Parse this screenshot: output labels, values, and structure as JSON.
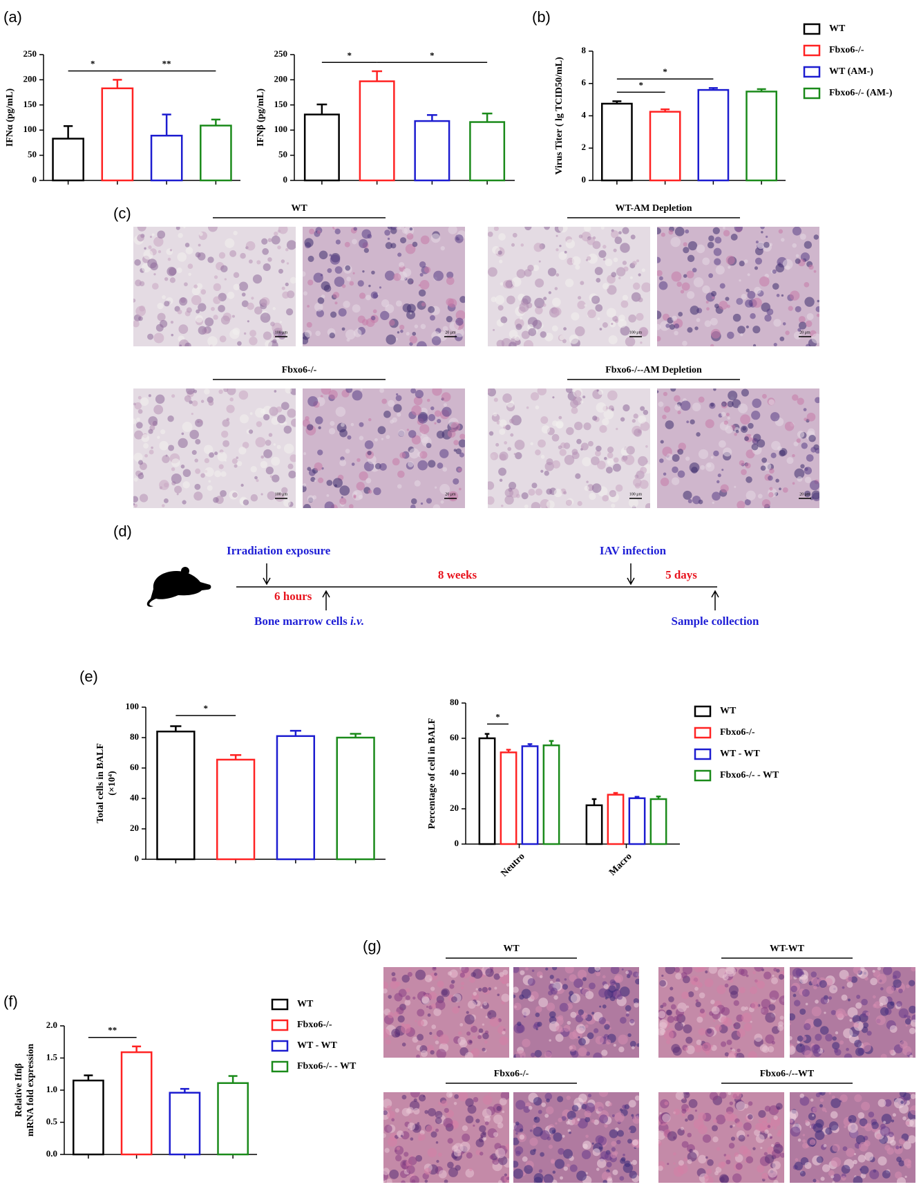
{
  "panel_labels": [
    "(a)",
    "(b)",
    "(c)",
    "(d)",
    "(e)",
    "(f)",
    "(g)"
  ],
  "legends": [
    {
      "items": [
        {
          "name": "WT",
          "color": "#000000"
        },
        {
          "name": "Fbxo6-/-",
          "color": "#ff2222"
        },
        {
          "name": "WT (AM-)",
          "color": "#1c1cd0"
        },
        {
          "name": "Fbxo6-/- (AM-)",
          "color": "#1a8a1a"
        }
      ]
    },
    {
      "items": [
        {
          "name": "WT",
          "color": "#000000"
        },
        {
          "name": "Fbxo6-/-",
          "color": "#ff2222"
        },
        {
          "name": "WT - WT",
          "color": "#1c1cd0"
        },
        {
          "name": "Fbxo6-/- - WT",
          "color": "#1a8a1a"
        }
      ]
    }
  ],
  "chart_data": [
    {
      "type": "bar",
      "ylabel": [
        "IFNα (pg/mL)"
      ],
      "categories": [
        null,
        null,
        null,
        null
      ],
      "values": [
        83,
        183,
        89,
        109
      ],
      "errors": [
        25,
        17,
        42,
        12
      ],
      "colors": [
        "#000000",
        "#ff2222",
        "#1c1cd0",
        "#1a8a1a"
      ],
      "ylim": [
        0,
        250
      ],
      "yticks": [
        0,
        50,
        100,
        150,
        200,
        250
      ],
      "significance": [
        {
          "label": "*",
          "from": 0,
          "to": 1
        },
        {
          "label": "**",
          "from": 1,
          "to": 3
        }
      ]
    },
    {
      "type": "bar",
      "ylabel": [
        "IFNβ (pg/mL)"
      ],
      "categories": [
        null,
        null,
        null,
        null
      ],
      "values": [
        131,
        197,
        118,
        116
      ],
      "errors": [
        20,
        20,
        12,
        17
      ],
      "colors": [
        "#000000",
        "#ff2222",
        "#1c1cd0",
        "#1a8a1a"
      ],
      "ylim": [
        0,
        250
      ],
      "yticks": [
        0,
        50,
        100,
        150,
        200,
        250
      ],
      "significance": [
        {
          "label": "*",
          "from": 0,
          "to": 1
        },
        {
          "label": "*",
          "from": 1,
          "to": 3
        }
      ]
    },
    {
      "type": "bar",
      "ylabel": [
        "Virus Titer ( lg TCID50/mL)"
      ],
      "categories": [
        null,
        null,
        null,
        null
      ],
      "values": [
        4.75,
        4.25,
        5.6,
        5.5
      ],
      "errors": [
        0.15,
        0.15,
        0.12,
        0.15
      ],
      "colors": [
        "#000000",
        "#ff2222",
        "#1c1cd0",
        "#1a8a1a"
      ],
      "ylim": [
        0,
        8
      ],
      "yticks": [
        0,
        2,
        4,
        6,
        8
      ],
      "significance": [
        {
          "label": "*",
          "from": 0,
          "to": 1
        },
        {
          "label": "*",
          "from": 0,
          "to": 2
        }
      ]
    },
    {
      "type": "bar",
      "ylabel": [
        "Total cells in BALF",
        "(×10⁴)"
      ],
      "categories": [
        null,
        null,
        null,
        null
      ],
      "values": [
        84,
        65.5,
        81,
        80
      ],
      "errors": [
        3.5,
        3,
        3.5,
        2.5
      ],
      "colors": [
        "#000000",
        "#ff2222",
        "#1c1cd0",
        "#1a8a1a"
      ],
      "ylim": [
        0,
        100
      ],
      "yticks": [
        0,
        20,
        40,
        60,
        80,
        100
      ],
      "significance": [
        {
          "label": "*",
          "from": 0,
          "to": 1
        }
      ]
    },
    {
      "type": "grouped_bar",
      "ylabel": [
        "Percentage of cell in BALF"
      ],
      "categories": [
        "Neutro",
        "Macro"
      ],
      "series": [
        {
          "name": "WT",
          "color": "#000000",
          "values": [
            60,
            22
          ],
          "errors": [
            2.5,
            3.5
          ]
        },
        {
          "name": "Fbxo6-/-",
          "color": "#ff2222",
          "values": [
            52,
            28
          ],
          "errors": [
            1.5,
            1
          ]
        },
        {
          "name": "WT - WT",
          "color": "#1c1cd0",
          "values": [
            55.5,
            26
          ],
          "errors": [
            1.2,
            0.8
          ]
        },
        {
          "name": "Fbxo6-/- - WT",
          "color": "#1a8a1a",
          "values": [
            56,
            25.5
          ],
          "errors": [
            2.5,
            1.5
          ]
        }
      ],
      "ylim": [
        0,
        80
      ],
      "yticks": [
        0,
        20,
        40,
        60,
        80
      ],
      "significance": [
        {
          "label": "*",
          "category": 0,
          "from": 0,
          "to": 1
        }
      ]
    },
    {
      "type": "bar",
      "ylabel": [
        "Relative Ifnβ",
        "mRNA fold expression"
      ],
      "categories": [
        null,
        null,
        null,
        null
      ],
      "values": [
        1.15,
        1.59,
        0.96,
        1.11
      ],
      "errors": [
        0.08,
        0.09,
        0.06,
        0.11
      ],
      "colors": [
        "#000000",
        "#ff2222",
        "#1c1cd0",
        "#1a8a1a"
      ],
      "ylim": [
        0,
        2
      ],
      "yticks": [
        {
          "value": 0,
          "label": "0.0"
        },
        {
          "value": 0.5,
          "label": "0.5"
        },
        {
          "value": 1,
          "label": "1.0"
        },
        {
          "value": 1.5,
          "label": "1.5"
        },
        {
          "value": 2,
          "label": "2.0"
        }
      ],
      "significance": [
        {
          "label": "**",
          "from": 0,
          "to": 1
        }
      ]
    }
  ],
  "micrographs_c": {
    "groups": [
      {
        "title": "WT"
      },
      {
        "title": "WT-AM Depletion"
      },
      {
        "title": "Fbxo6-/-"
      },
      {
        "title": "Fbxo6-/--AM Depletion"
      }
    ],
    "scale_labels": [
      "100 μm",
      "20 μm"
    ]
  },
  "micrographs_g": {
    "groups": [
      {
        "title": "WT"
      },
      {
        "title": "WT-WT"
      },
      {
        "title": "Fbxo6-/-"
      },
      {
        "title": "Fbxo6-/--WT"
      }
    ]
  },
  "diagram": {
    "irradiation": "Irradiation  exposure",
    "interval_1": "6 hours",
    "bone_marrow": "Bone marrow cells",
    "route": "i.v.",
    "interval_2": "8 weeks",
    "infection": "IAV infection",
    "interval_3": "5 days",
    "collection": "Sample collection"
  }
}
